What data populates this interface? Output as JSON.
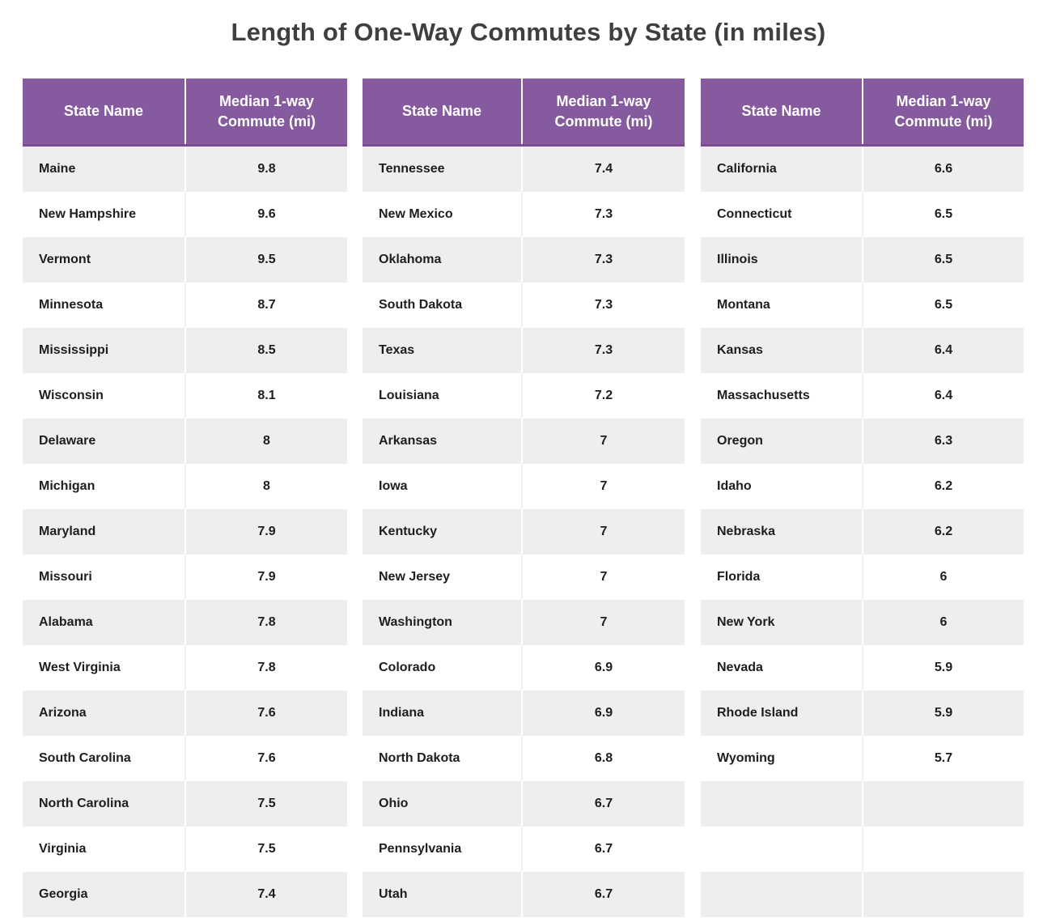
{
  "title": "Length of One-Way Commutes by State (in miles)",
  "colors": {
    "header": "#855a9e",
    "row_shade": "#efedef",
    "row_plain": "#ffffff",
    "title": "#3f3f3f"
  },
  "chart_data": {
    "type": "table",
    "title": "Length of One-Way Commutes by State (in miles)",
    "columns": [
      "State Name",
      "Median 1-way Commute (mi)"
    ],
    "tables": [
      {
        "headers": [
          "State Name",
          "Median 1-way\nCommute (mi)"
        ],
        "rows": [
          [
            "Maine",
            "9.8"
          ],
          [
            "New Hampshire",
            "9.6"
          ],
          [
            "Vermont",
            "9.5"
          ],
          [
            "Minnesota",
            "8.7"
          ],
          [
            "Mississippi",
            "8.5"
          ],
          [
            "Wisconsin",
            "8.1"
          ],
          [
            "Delaware",
            "8"
          ],
          [
            "Michigan",
            "8"
          ],
          [
            "Maryland",
            "7.9"
          ],
          [
            "Missouri",
            "7.9"
          ],
          [
            "Alabama",
            "7.8"
          ],
          [
            "West Virginia",
            "7.8"
          ],
          [
            "Arizona",
            "7.6"
          ],
          [
            "South Carolina",
            "7.6"
          ],
          [
            "North Carolina",
            "7.5"
          ],
          [
            "Virginia",
            "7.5"
          ],
          [
            "Georgia",
            "7.4"
          ]
        ]
      },
      {
        "headers": [
          "State Name",
          "Median 1-way\nCommute (mi)"
        ],
        "rows": [
          [
            "Tennessee",
            "7.4"
          ],
          [
            "New Mexico",
            "7.3"
          ],
          [
            "Oklahoma",
            "7.3"
          ],
          [
            "South Dakota",
            "7.3"
          ],
          [
            "Texas",
            "7.3"
          ],
          [
            "Louisiana",
            "7.2"
          ],
          [
            "Arkansas",
            "7"
          ],
          [
            "Iowa",
            "7"
          ],
          [
            "Kentucky",
            "7"
          ],
          [
            "New Jersey",
            "7"
          ],
          [
            "Washington",
            "7"
          ],
          [
            "Colorado",
            "6.9"
          ],
          [
            "Indiana",
            "6.9"
          ],
          [
            "North Dakota",
            "6.8"
          ],
          [
            "Ohio",
            "6.7"
          ],
          [
            "Pennsylvania",
            "6.7"
          ],
          [
            "Utah",
            "6.7"
          ]
        ]
      },
      {
        "headers": [
          "State Name",
          "Median 1-way\nCommute (mi)"
        ],
        "rows": [
          [
            "California",
            "6.6"
          ],
          [
            "Connecticut",
            "6.5"
          ],
          [
            "Illinois",
            "6.5"
          ],
          [
            "Montana",
            "6.5"
          ],
          [
            "Kansas",
            "6.4"
          ],
          [
            "Massachusetts",
            "6.4"
          ],
          [
            "Oregon",
            "6.3"
          ],
          [
            "Idaho",
            "6.2"
          ],
          [
            "Nebraska",
            "6.2"
          ],
          [
            "Florida",
            "6"
          ],
          [
            "New York",
            "6"
          ],
          [
            "Nevada",
            "5.9"
          ],
          [
            "Rhode Island",
            "5.9"
          ],
          [
            "Wyoming",
            "5.7"
          ],
          [
            "",
            ""
          ],
          [
            "",
            ""
          ],
          [
            "",
            ""
          ]
        ]
      }
    ]
  }
}
